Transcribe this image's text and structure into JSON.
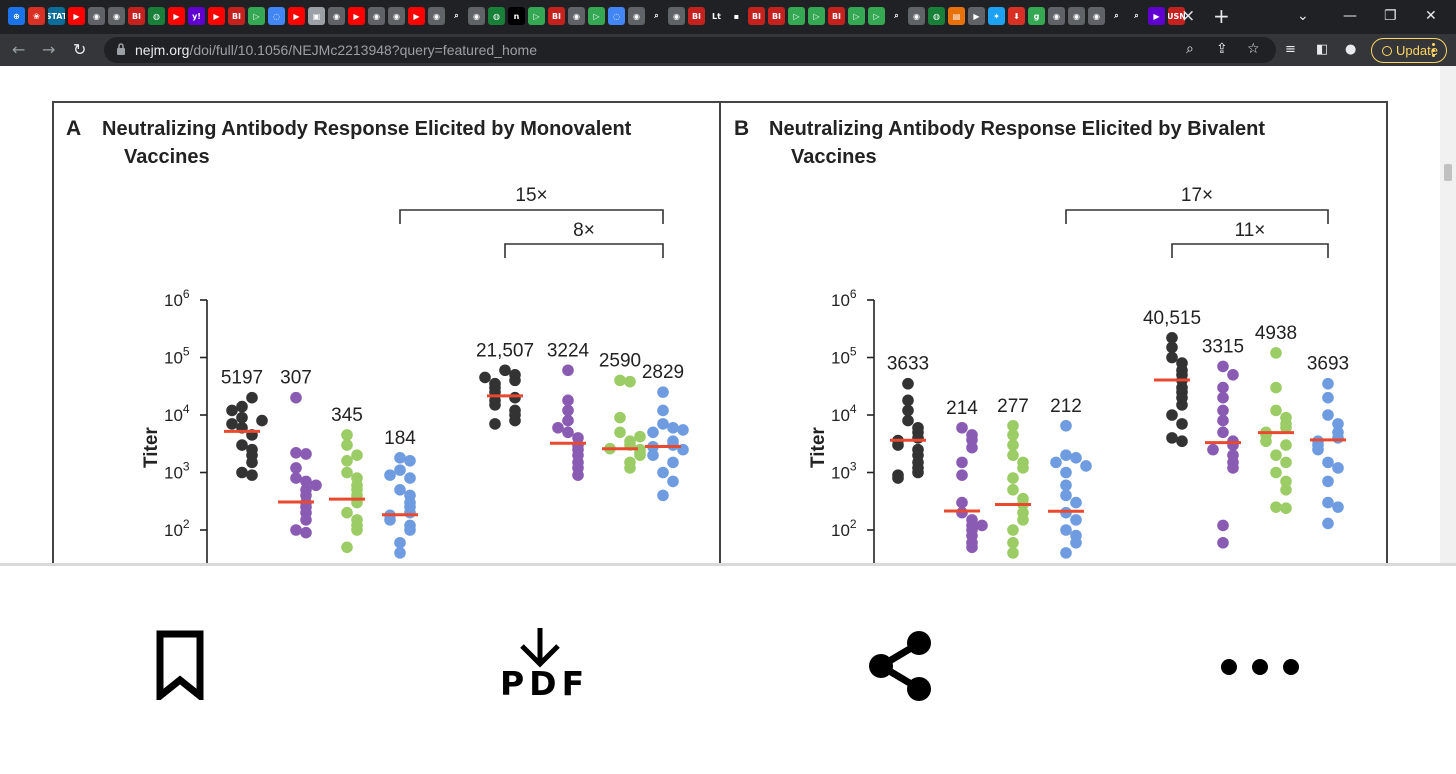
{
  "browser": {
    "tab_glyphs": [
      "⊕",
      "❀",
      "STAT",
      "▶",
      "◉",
      "◉",
      "BI",
      "◍",
      "▶",
      "y!",
      "▶",
      "BI",
      "▷",
      "◌",
      "▶",
      "▣",
      "◉",
      "▶",
      "◉",
      "◉",
      "▶",
      "◉",
      "⌕",
      "◉",
      "◍",
      "n",
      "▷",
      "BI",
      "◉",
      "▷",
      "◌",
      "◉",
      "⌕",
      "◉",
      "BI",
      "Lt",
      "▪",
      "BI",
      "BI",
      "▷",
      "▷",
      "BI",
      "▷",
      "▷",
      "⌕",
      "◉",
      "◍",
      "▤",
      "▶",
      "✦",
      "⬇",
      "g",
      "◉",
      "◉",
      "◉",
      "⌕",
      "⌕",
      "▶",
      "USN"
    ],
    "active_tab_close": "×",
    "new_tab": "+",
    "url_domain": "nejm.org",
    "url_path": "/doi/full/10.1056/NEJMc2213948?query=featured_home",
    "update_label": "Update"
  },
  "colors": {
    "black": "#333333",
    "purple": "#8a5bb3",
    "green": "#9ccc65",
    "blue": "#6f9ce0",
    "median": "#e8492f"
  },
  "figure": {
    "panel_a": {
      "letter": "A",
      "title_line1": "Neutralizing Antibody Response Elicited by Monovalent",
      "title_line2": "Vaccines"
    },
    "panel_b": {
      "letter": "B",
      "title_line1": "Neutralizing Antibody Response Elicited by Bivalent",
      "title_line2": "Vaccines"
    },
    "y_axis_title": "Titer",
    "y_ticks": [
      {
        "base": "10",
        "exp": "6"
      },
      {
        "base": "10",
        "exp": "5"
      },
      {
        "base": "10",
        "exp": "4"
      },
      {
        "base": "10",
        "exp": "3"
      },
      {
        "base": "10",
        "exp": "2"
      }
    ]
  },
  "chart_data": [
    {
      "type": "scatter",
      "title": "Neutralizing Antibody Response Elicited by Monovalent Vaccines",
      "ylabel": "Titer",
      "yscale": "log",
      "series": [
        {
          "median": 5197,
          "color": "#333333",
          "values": [
            14000,
            20000,
            6000,
            9000,
            12000,
            4500,
            3000,
            2500,
            2000,
            1500,
            1000,
            900,
            7000,
            8000
          ]
        },
        {
          "median": 307,
          "color": "#8a5bb3",
          "values": [
            20000,
            2200,
            2100,
            800,
            700,
            500,
            400,
            300,
            250,
            200,
            150,
            100,
            90,
            1200,
            600
          ]
        },
        {
          "median": 345,
          "color": "#9ccc65",
          "values": [
            4500,
            3000,
            1600,
            1000,
            800,
            600,
            500,
            400,
            300,
            200,
            150,
            120,
            100,
            50,
            2000
          ]
        },
        {
          "median": 184,
          "color": "#6f9ce0",
          "values": [
            1800,
            1600,
            1100,
            800,
            500,
            400,
            300,
            250,
            200,
            180,
            150,
            120,
            100,
            60,
            40,
            900
          ]
        },
        {
          "median": 21507,
          "color": "#333333",
          "values": [
            60000,
            50000,
            40000,
            35000,
            30000,
            25000,
            20000,
            18000,
            15000,
            12000,
            10000,
            8000,
            7000,
            45000
          ]
        },
        {
          "median": 3224,
          "color": "#8a5bb3",
          "values": [
            60000,
            18000,
            12000,
            8000,
            5000,
            4000,
            3000,
            2500,
            2000,
            1500,
            1200,
            900,
            6000
          ]
        },
        {
          "median": 2590,
          "color": "#9ccc65",
          "values": [
            40000,
            38000,
            9000,
            5000,
            3500,
            3000,
            2600,
            2500,
            2200,
            2000,
            1500,
            1200,
            4200
          ]
        },
        {
          "median": 2829,
          "color": "#6f9ce0",
          "values": [
            25000,
            12000,
            7000,
            6000,
            5000,
            3500,
            3000,
            2800,
            2500,
            2000,
            1500,
            1000,
            700,
            400,
            5500
          ]
        }
      ],
      "median_labels": [
        "5197",
        "307",
        "345",
        "184",
        "21,507",
        "3224",
        "2590",
        "2829"
      ],
      "brackets": [
        "15×",
        "8×"
      ]
    },
    {
      "type": "scatter",
      "title": "Neutralizing Antibody Response Elicited by Bivalent Vaccines",
      "ylabel": "Titer",
      "yscale": "log",
      "series": [
        {
          "median": 3633,
          "color": "#333333",
          "values": [
            35000,
            18000,
            12000,
            8000,
            6000,
            5000,
            4000,
            3600,
            3000,
            2500,
            2000,
            1500,
            1200,
            1000,
            900,
            800
          ]
        },
        {
          "median": 214,
          "color": "#8a5bb3",
          "values": [
            6000,
            4500,
            3700,
            2700,
            1500,
            900,
            300,
            200,
            150,
            120,
            100,
            80,
            60,
            120,
            50
          ]
        },
        {
          "median": 277,
          "color": "#9ccc65",
          "values": [
            6500,
            4500,
            3000,
            2000,
            1500,
            1200,
            800,
            500,
            350,
            280,
            200,
            150,
            100,
            60,
            40
          ]
        },
        {
          "median": 212,
          "color": "#6f9ce0",
          "values": [
            6500,
            2000,
            1800,
            1500,
            1000,
            600,
            400,
            300,
            200,
            150,
            100,
            80,
            60,
            40,
            1300
          ]
        },
        {
          "median": 40515,
          "color": "#333333",
          "values": [
            220000,
            150000,
            100000,
            80000,
            60000,
            50000,
            40000,
            30000,
            25000,
            20000,
            15000,
            10000,
            7000,
            4000,
            3500
          ]
        },
        {
          "median": 3315,
          "color": "#8a5bb3",
          "values": [
            70000,
            50000,
            30000,
            20000,
            12000,
            8000,
            5000,
            3500,
            3000,
            2500,
            2000,
            1500,
            1200,
            120,
            60
          ]
        },
        {
          "median": 4938,
          "color": "#9ccc65",
          "values": [
            120000,
            30000,
            12000,
            9000,
            7000,
            6000,
            5000,
            4500,
            3500,
            3000,
            2000,
            1500,
            1000,
            700,
            500,
            250,
            240
          ]
        },
        {
          "median": 3693,
          "color": "#6f9ce0",
          "values": [
            35000,
            20000,
            10000,
            7000,
            5000,
            4000,
            3500,
            3000,
            2500,
            1500,
            1200,
            700,
            300,
            250,
            130
          ]
        }
      ],
      "median_labels": [
        "3633",
        "214",
        "277",
        "212",
        "40,515",
        "3315",
        "4938",
        "3693"
      ],
      "brackets": [
        "17×",
        "11×"
      ]
    }
  ],
  "bottom_bar": {
    "pdf_label": "PDF"
  }
}
